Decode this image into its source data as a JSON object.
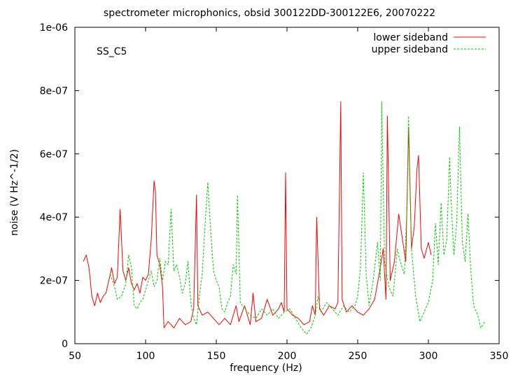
{
  "chart_data": {
    "type": "line",
    "title": "spectrometer microphonics, obsid 300122DD-300122E6, 20070222",
    "xlabel": "frequency (Hz)",
    "ylabel": "noise (V Hz^-1/2)",
    "annotation": "SS_C5",
    "xlim": [
      50,
      350
    ],
    "ylim": [
      0,
      1e-06
    ],
    "x_ticks": [
      50,
      100,
      150,
      200,
      250,
      300,
      350
    ],
    "x_tick_labels": [
      "50",
      "100",
      "150",
      "200",
      "250",
      "300",
      "350"
    ],
    "y_ticks": [
      0,
      2e-07,
      4e-07,
      6e-07,
      8e-07,
      1e-06
    ],
    "y_tick_labels": [
      "0",
      "2e-07",
      "4e-07",
      "6e-07",
      "8e-07",
      "1e-06"
    ],
    "grid": false,
    "legend_position": "top-right",
    "series": [
      {
        "name": "lower sideband",
        "color": "#ff0000",
        "dash": "solid",
        "points": [
          [
            56,
            2.6e-07
          ],
          [
            58,
            2.8e-07
          ],
          [
            60,
            2.4e-07
          ],
          [
            62,
            1.5e-07
          ],
          [
            64,
            1.2e-07
          ],
          [
            66,
            1.6e-07
          ],
          [
            68,
            1.3e-07
          ],
          [
            70,
            1.5e-07
          ],
          [
            72,
            1.6e-07
          ],
          [
            74,
            2e-07
          ],
          [
            76,
            2.4e-07
          ],
          [
            78,
            1.9e-07
          ],
          [
            80,
            2.1e-07
          ],
          [
            82,
            4.25e-07
          ],
          [
            84,
            2.3e-07
          ],
          [
            86,
            2e-07
          ],
          [
            88,
            2.4e-07
          ],
          [
            90,
            1.9e-07
          ],
          [
            92,
            1.7e-07
          ],
          [
            94,
            1.9e-07
          ],
          [
            96,
            1.6e-07
          ],
          [
            98,
            2.1e-07
          ],
          [
            100,
            2e-07
          ],
          [
            102,
            2.2e-07
          ],
          [
            104,
            3.3e-07
          ],
          [
            106,
            5.15e-07
          ],
          [
            107,
            4.8e-07
          ],
          [
            108,
            2.8e-07
          ],
          [
            110,
            2.5e-07
          ],
          [
            112,
            1.8e-07
          ],
          [
            113,
            5e-08
          ],
          [
            116,
            7e-08
          ],
          [
            120,
            5e-08
          ],
          [
            124,
            8e-08
          ],
          [
            128,
            6e-08
          ],
          [
            132,
            7e-08
          ],
          [
            134,
            1.1e-07
          ],
          [
            136,
            4.7e-07
          ],
          [
            137,
            1.2e-07
          ],
          [
            140,
            9e-08
          ],
          [
            144,
            1e-07
          ],
          [
            148,
            8e-08
          ],
          [
            152,
            6e-08
          ],
          [
            156,
            8e-08
          ],
          [
            160,
            6e-08
          ],
          [
            164,
            1.2e-07
          ],
          [
            166,
            7e-08
          ],
          [
            170,
            1.2e-07
          ],
          [
            174,
            6e-08
          ],
          [
            176,
            1.6e-07
          ],
          [
            178,
            7e-08
          ],
          [
            182,
            8e-08
          ],
          [
            186,
            1.4e-07
          ],
          [
            190,
            9e-08
          ],
          [
            194,
            1.1e-07
          ],
          [
            196,
            1.3e-07
          ],
          [
            198,
            1e-07
          ],
          [
            199,
            5.4e-07
          ],
          [
            200,
            1.1e-07
          ],
          [
            204,
            9e-08
          ],
          [
            208,
            8e-08
          ],
          [
            212,
            6e-08
          ],
          [
            216,
            7e-08
          ],
          [
            218,
            1.2e-07
          ],
          [
            220,
            9e-08
          ],
          [
            221,
            4e-07
          ],
          [
            223,
            1.1e-07
          ],
          [
            226,
            9e-08
          ],
          [
            230,
            1.2e-07
          ],
          [
            234,
            1.1e-07
          ],
          [
            236,
            1.3e-07
          ],
          [
            238,
            7.65e-07
          ],
          [
            239,
            1.4e-07
          ],
          [
            242,
            1e-07
          ],
          [
            246,
            1.2e-07
          ],
          [
            250,
            1e-07
          ],
          [
            254,
            9e-08
          ],
          [
            258,
            1.1e-07
          ],
          [
            262,
            1.4e-07
          ],
          [
            266,
            2.4e-07
          ],
          [
            268,
            3e-07
          ],
          [
            270,
            1.4e-07
          ],
          [
            271,
            7.2e-07
          ],
          [
            273,
            2e-07
          ],
          [
            276,
            2.6e-07
          ],
          [
            279,
            4.1e-07
          ],
          [
            281,
            3.5e-07
          ],
          [
            284,
            2.6e-07
          ],
          [
            286,
            6.85e-07
          ],
          [
            288,
            3e-07
          ],
          [
            290,
            3.7e-07
          ],
          [
            292,
            5.55e-07
          ],
          [
            293,
            5.95e-07
          ],
          [
            295,
            3e-07
          ],
          [
            297,
            2.7e-07
          ],
          [
            300,
            3.2e-07
          ],
          [
            302,
            2.8e-07
          ]
        ]
      },
      {
        "name": "upper sideband",
        "color": "#00cc00",
        "dash": "dashed",
        "points": [
          [
            75,
            2.2e-07
          ],
          [
            78,
            1.8e-07
          ],
          [
            80,
            1.4e-07
          ],
          [
            83,
            1.5e-07
          ],
          [
            86,
            1.9e-07
          ],
          [
            88,
            2.8e-07
          ],
          [
            90,
            2.4e-07
          ],
          [
            92,
            1.2e-07
          ],
          [
            94,
            1.1e-07
          ],
          [
            96,
            1.3e-07
          ],
          [
            98,
            1.4e-07
          ],
          [
            100,
            1.7e-07
          ],
          [
            102,
            2e-07
          ],
          [
            104,
            2.3e-07
          ],
          [
            106,
            1.8e-07
          ],
          [
            108,
            2e-07
          ],
          [
            110,
            2.7e-07
          ],
          [
            112,
            2e-07
          ],
          [
            114,
            2.6e-07
          ],
          [
            116,
            2.5e-07
          ],
          [
            118,
            4.25e-07
          ],
          [
            120,
            2.3e-07
          ],
          [
            122,
            2.5e-07
          ],
          [
            124,
            2.1e-07
          ],
          [
            126,
            1.6e-07
          ],
          [
            128,
            1.9e-07
          ],
          [
            130,
            2.6e-07
          ],
          [
            132,
            1.3e-07
          ],
          [
            134,
            8e-08
          ],
          [
            136,
            6e-08
          ],
          [
            138,
            1.5e-07
          ],
          [
            140,
            2.2e-07
          ],
          [
            142,
            3.7e-07
          ],
          [
            144,
            5.1e-07
          ],
          [
            146,
            3.6e-07
          ],
          [
            148,
            2.3e-07
          ],
          [
            150,
            2e-07
          ],
          [
            152,
            1.8e-07
          ],
          [
            154,
            1.1e-07
          ],
          [
            156,
            1e-07
          ],
          [
            158,
            1.3e-07
          ],
          [
            160,
            1.5e-07
          ],
          [
            162,
            2.5e-07
          ],
          [
            164,
            2.2e-07
          ],
          [
            165,
            4.7e-07
          ],
          [
            167,
            1.3e-07
          ],
          [
            170,
            1.1e-07
          ],
          [
            174,
            9e-08
          ],
          [
            178,
            8e-08
          ],
          [
            182,
            1.1e-07
          ],
          [
            186,
            9e-08
          ],
          [
            190,
            1.1e-07
          ],
          [
            194,
            8e-08
          ],
          [
            198,
            1e-07
          ],
          [
            202,
            1.1e-07
          ],
          [
            206,
            8e-08
          ],
          [
            210,
            5e-08
          ],
          [
            214,
            3e-08
          ],
          [
            217,
            5e-08
          ],
          [
            220,
            9e-08
          ],
          [
            222,
            1.5e-07
          ],
          [
            224,
            1e-07
          ],
          [
            228,
            1.3e-07
          ],
          [
            232,
            1.1e-07
          ],
          [
            236,
            9e-08
          ],
          [
            240,
            1.2e-07
          ],
          [
            244,
            1e-07
          ],
          [
            248,
            1.2e-07
          ],
          [
            250,
            1.5e-07
          ],
          [
            252,
            2.4e-07
          ],
          [
            254,
            5.4e-07
          ],
          [
            256,
            2.2e-07
          ],
          [
            258,
            1.2e-07
          ],
          [
            261,
            2e-07
          ],
          [
            264,
            3.2e-07
          ],
          [
            266,
            2e-07
          ],
          [
            267,
            7.65e-07
          ],
          [
            269,
            2.6e-07
          ],
          [
            272,
            1.8e-07
          ],
          [
            275,
            1.5e-07
          ],
          [
            278,
            3e-07
          ],
          [
            280,
            2.6e-07
          ],
          [
            283,
            2.2e-07
          ],
          [
            285,
            4.5e-07
          ],
          [
            286,
            7.2e-07
          ],
          [
            288,
            3e-07
          ],
          [
            291,
            1.5e-07
          ],
          [
            294,
            7e-08
          ],
          [
            297,
            1e-07
          ],
          [
            300,
            1.3e-07
          ],
          [
            303,
            2e-07
          ],
          [
            305,
            3.8e-07
          ],
          [
            307,
            2.5e-07
          ],
          [
            309,
            4.45e-07
          ],
          [
            311,
            2.8e-07
          ],
          [
            313,
            3.3e-07
          ],
          [
            315,
            5.9e-07
          ],
          [
            316,
            4.6e-07
          ],
          [
            318,
            2.8e-07
          ],
          [
            320,
            3.8e-07
          ],
          [
            322,
            6.85e-07
          ],
          [
            324,
            3.2e-07
          ],
          [
            326,
            2.6e-07
          ],
          [
            328,
            4.1e-07
          ],
          [
            330,
            2.3e-07
          ],
          [
            332,
            1.2e-07
          ],
          [
            335,
            9e-08
          ],
          [
            337,
            5e-08
          ],
          [
            340,
            7e-08
          ]
        ]
      }
    ]
  }
}
